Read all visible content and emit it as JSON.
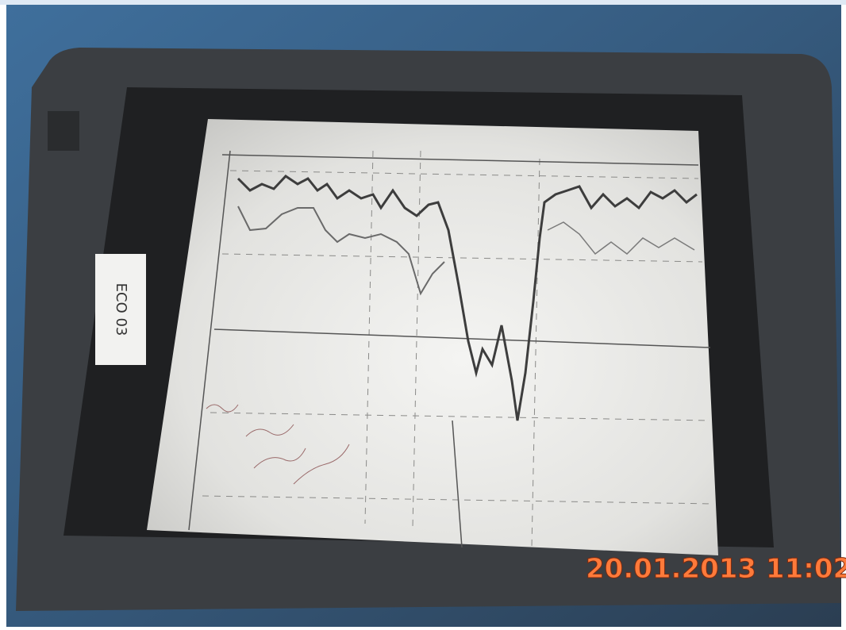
{
  "label": "ECO 03",
  "timestamp": "20.01.2013 11:02"
}
